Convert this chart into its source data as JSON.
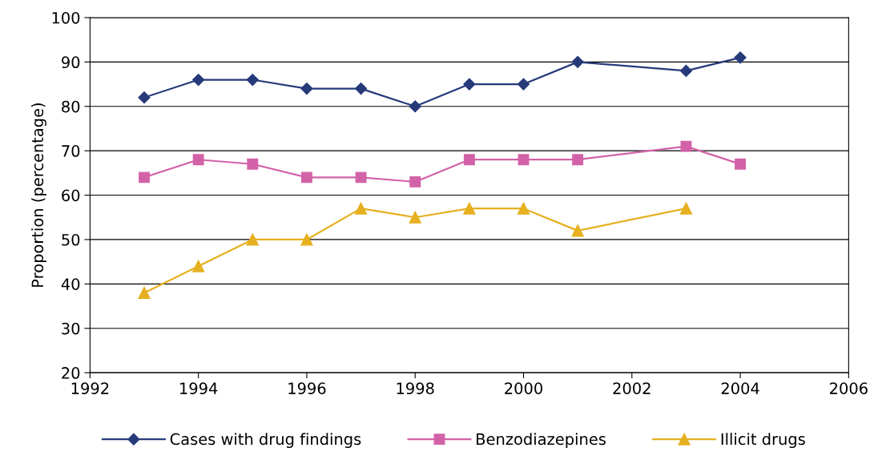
{
  "chart_data": {
    "type": "line",
    "ylabel": "Proportion (percentage)",
    "x": [
      1993,
      1994,
      1995,
      1996,
      1997,
      1998,
      1999,
      2000,
      2001,
      2003,
      2004
    ],
    "series": [
      {
        "name": "Cases with drug findings",
        "color": "#263a7a",
        "marker": "diamond",
        "values": [
          82,
          86,
          86,
          84,
          84,
          80,
          85,
          85,
          90,
          88,
          91
        ]
      },
      {
        "name": "Benzodiazepines",
        "color": "#d262a8",
        "marker": "square",
        "values": [
          64,
          68,
          67,
          64,
          64,
          63,
          68,
          68,
          68,
          71,
          67
        ]
      },
      {
        "name": "Illicit drugs",
        "color": "#e6b020",
        "marker": "triangle",
        "values": [
          38,
          44,
          50,
          50,
          57,
          55,
          57,
          57,
          52,
          57,
          null
        ]
      }
    ],
    "xlim": [
      1992,
      2006
    ],
    "xticks": [
      1992,
      1994,
      1996,
      1998,
      2000,
      2002,
      2004,
      2006
    ],
    "ylim": [
      20,
      100
    ],
    "yticks": [
      20,
      30,
      40,
      50,
      60,
      70,
      80,
      90,
      100
    ],
    "grid": "y",
    "legend": "bottom",
    "line_style": "solid"
  }
}
